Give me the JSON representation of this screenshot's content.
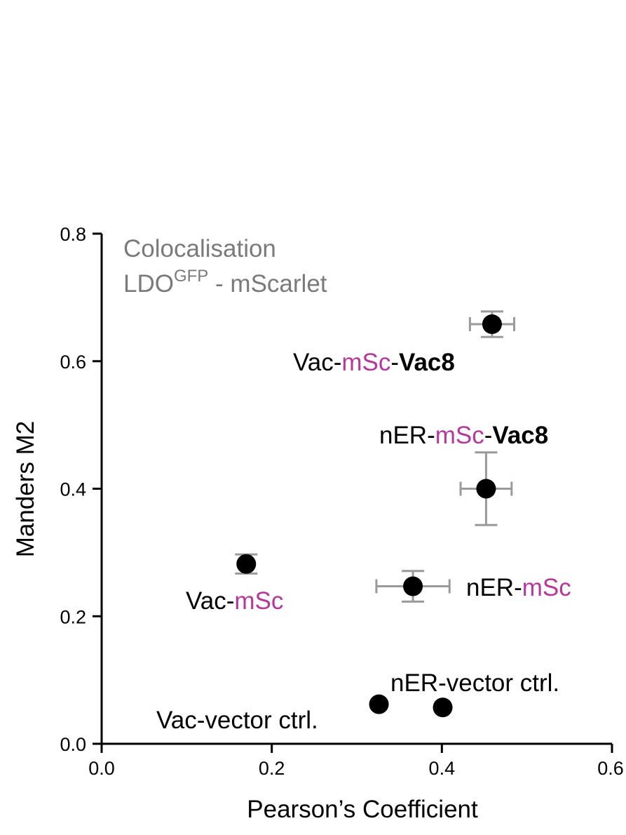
{
  "chart_data": {
    "type": "scatter",
    "title": "",
    "xlabel": "Pearson’s Coefficient",
    "ylabel": "Manders M2",
    "xlim": [
      0.0,
      0.6
    ],
    "ylim": [
      0.0,
      0.8
    ],
    "xticks": [
      "0.0",
      "0.2",
      "0.4",
      "0.6"
    ],
    "xtick_values": [
      0.0,
      0.2,
      0.4,
      0.6
    ],
    "yticks": [
      "0.0",
      "0.2",
      "0.4",
      "0.6",
      "0.8"
    ],
    "ytick_values": [
      0.0,
      0.2,
      0.4,
      0.6,
      0.8
    ],
    "grid": false,
    "annotation": {
      "line1": "Colocalisation",
      "line2_base": "LDO",
      "line2_sup": "GFP",
      "line2_rest": " - mScarlet"
    },
    "points": [
      {
        "x": 0.459,
        "y": 0.658,
        "xerr": 0.026,
        "yerr": 0.02,
        "label": [
          {
            "t": "Vac-",
            "s": "plain"
          },
          {
            "t": "mSc",
            "s": "accent"
          },
          {
            "t": "-",
            "s": "plain"
          },
          {
            "t": "Vac8",
            "s": "bold"
          }
        ]
      },
      {
        "x": 0.452,
        "y": 0.4,
        "xerr": 0.03,
        "yerr": 0.057,
        "label": [
          {
            "t": "nER-",
            "s": "plain"
          },
          {
            "t": "mSc",
            "s": "accent"
          },
          {
            "t": "-",
            "s": "plain"
          },
          {
            "t": "Vac8",
            "s": "bold"
          }
        ]
      },
      {
        "x": 0.17,
        "y": 0.282,
        "xerr": 0.0,
        "yerr": 0.015,
        "label": [
          {
            "t": "Vac-",
            "s": "plain"
          },
          {
            "t": "mSc",
            "s": "accent"
          }
        ]
      },
      {
        "x": 0.366,
        "y": 0.247,
        "xerr": 0.043,
        "yerr": 0.024,
        "label": [
          {
            "t": "nER-",
            "s": "plain"
          },
          {
            "t": "mSc",
            "s": "accent"
          }
        ]
      },
      {
        "x": 0.326,
        "y": 0.062,
        "xerr": 0.0,
        "yerr": 0.0,
        "label": [
          {
            "t": "Vac-vector ctrl.",
            "s": "plain"
          }
        ]
      },
      {
        "x": 0.401,
        "y": 0.057,
        "xerr": 0.0,
        "yerr": 0.0,
        "label": [
          {
            "t": "nER-vector ctrl.",
            "s": "plain"
          }
        ]
      }
    ],
    "colors": {
      "marker": "#000000",
      "errorbar": "#9a9a9a",
      "accent": "#b5389b",
      "annotation": "#7a7a7a"
    }
  }
}
